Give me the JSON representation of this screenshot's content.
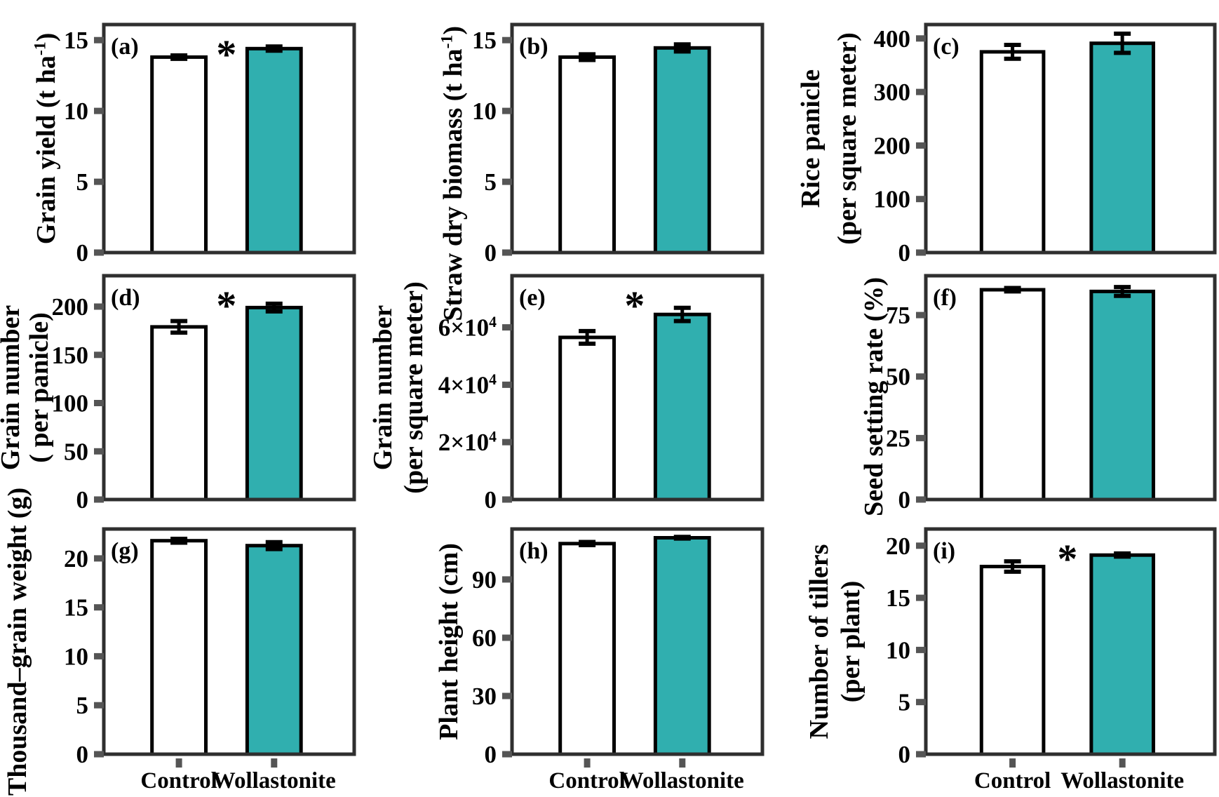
{
  "figure": {
    "description": "Nine-panel bar figure comparing Control vs Wollastonite treatments for rice agronomic traits",
    "categories": [
      "Control",
      "Wollastonite"
    ],
    "significance_symbol": "*",
    "colors": {
      "control_bar_fill": "#ffffff",
      "wollastonite_bar_fill": "#30AFAF",
      "bar_outline": "#000000",
      "frame": "#2f2f2f",
      "tick_mark": "#555555",
      "text": "#000000",
      "background": "#ffffff"
    }
  },
  "chart_data": [
    {
      "type": "bar",
      "panel_letter": "(a)",
      "ylabel_lines": [
        "Grain yield (t ha^{-1})"
      ],
      "categories": [
        "Control",
        "Wollastonite"
      ],
      "values": [
        13.8,
        14.4
      ],
      "errors": [
        0.12,
        0.15
      ],
      "yticks": [
        0,
        5,
        10,
        15
      ],
      "ytick_labels": [
        "0",
        "5",
        "10",
        "15"
      ],
      "ylim": [
        0,
        16.1
      ],
      "significant": true,
      "show_x_labels": false
    },
    {
      "type": "bar",
      "panel_letter": "(b)",
      "ylabel_lines": [
        "Straw dry biomass (t ha^{-1})"
      ],
      "categories": [
        "Control",
        "Wollastonite"
      ],
      "values": [
        13.8,
        14.45
      ],
      "errors": [
        0.2,
        0.25
      ],
      "yticks": [
        0,
        5,
        10,
        15
      ],
      "ytick_labels": [
        "0",
        "5",
        "10",
        "15"
      ],
      "ylim": [
        0,
        16.1
      ],
      "significant": false,
      "show_x_labels": false
    },
    {
      "type": "bar",
      "panel_letter": "(c)",
      "ylabel_lines": [
        "Rice panicle",
        "(per square meter)"
      ],
      "categories": [
        "Control",
        "Wollastonite"
      ],
      "values": [
        375,
        391
      ],
      "errors": [
        13,
        18
      ],
      "yticks": [
        0,
        100,
        200,
        300,
        400
      ],
      "ytick_labels": [
        "0",
        "100",
        "200",
        "300",
        "400"
      ],
      "ylim": [
        0,
        426
      ],
      "significant": false,
      "show_x_labels": false
    },
    {
      "type": "bar",
      "panel_letter": "(d)",
      "ylabel_lines": [
        "Grain number",
        "( per panicle)"
      ],
      "categories": [
        "Control",
        "Wollastonite"
      ],
      "values": [
        179,
        199
      ],
      "errors": [
        6,
        4
      ],
      "yticks": [
        0,
        50,
        100,
        150,
        200
      ],
      "ytick_labels": [
        "0",
        "50",
        "100",
        "150",
        "200"
      ],
      "ylim": [
        0,
        232
      ],
      "significant": true,
      "show_x_labels": false
    },
    {
      "type": "bar",
      "panel_letter": "(e)",
      "ylabel_lines": [
        "Grain number",
        "(per square meter)"
      ],
      "categories": [
        "Control",
        "Wollastonite"
      ],
      "values": [
        56500,
        64500
      ],
      "errors": [
        2200,
        2300
      ],
      "yticks": [
        0,
        20000,
        40000,
        60000
      ],
      "ytick_labels": [
        "0",
        "2×10^{4}",
        "4×10^{4}",
        "6×10^{4}"
      ],
      "ylim": [
        0,
        78000
      ],
      "significant": true,
      "show_x_labels": false
    },
    {
      "type": "bar",
      "panel_letter": "(f)",
      "ylabel_lines": [
        "Seed setting rate (%)"
      ],
      "categories": [
        "Control",
        "Wollastonite"
      ],
      "values": [
        85.3,
        84.6
      ],
      "errors": [
        0.7,
        1.8
      ],
      "yticks": [
        0,
        25,
        50,
        75
      ],
      "ytick_labels": [
        "0",
        "25",
        "50",
        "75"
      ],
      "ylim": [
        0,
        91
      ],
      "significant": false,
      "show_x_labels": false
    },
    {
      "type": "bar",
      "panel_letter": "(g)",
      "ylabel_lines": [
        "Thousand–grain weight (g)"
      ],
      "categories": [
        "Control",
        "Wollastonite"
      ],
      "values": [
        21.8,
        21.3
      ],
      "errors": [
        0.2,
        0.35
      ],
      "yticks": [
        0,
        5,
        10,
        15,
        20
      ],
      "ytick_labels": [
        "0",
        "5",
        "10",
        "15",
        "20"
      ],
      "ylim": [
        0,
        23
      ],
      "significant": false,
      "show_x_labels": true
    },
    {
      "type": "bar",
      "panel_letter": "(h)",
      "ylabel_lines": [
        "Plant height (cm)"
      ],
      "categories": [
        "Control",
        "Wollastonite"
      ],
      "values": [
        108.5,
        111.5
      ],
      "errors": [
        0.8,
        0.4
      ],
      "yticks": [
        0,
        30,
        60,
        90
      ],
      "ytick_labels": [
        "0",
        "30",
        "60",
        "90"
      ],
      "ylim": [
        0,
        116
      ],
      "significant": false,
      "show_x_labels": true
    },
    {
      "type": "bar",
      "panel_letter": "(i)",
      "ylabel_lines": [
        "Number of tillers",
        "(per plant)"
      ],
      "categories": [
        "Control",
        "Wollastonite"
      ],
      "values": [
        18.0,
        19.1
      ],
      "errors": [
        0.5,
        0.15
      ],
      "yticks": [
        0,
        5,
        10,
        15,
        20
      ],
      "ytick_labels": [
        "0",
        "5",
        "10",
        "15",
        "20"
      ],
      "ylim": [
        0,
        21.6
      ],
      "significant": true,
      "show_x_labels": true
    }
  ]
}
